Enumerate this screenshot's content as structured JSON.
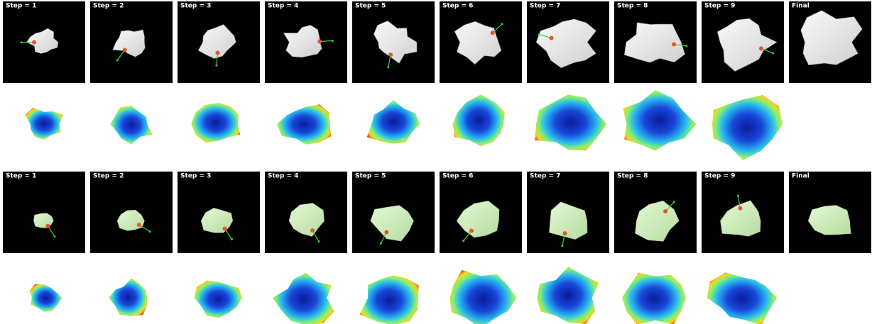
{
  "rows": [
    {
      "panels": [
        "Step = 1",
        "Step = 2",
        "Step = 3",
        "Step = 4",
        "Step = 5",
        "Step = 6",
        "Step = 7",
        "Step = 8",
        "Step = 9",
        "Final"
      ]
    },
    {
      "panels": [
        "Step = 1",
        "Step = 2",
        "Step = 3",
        "Step = 4",
        "Step = 5",
        "Step = 6",
        "Step = 7",
        "Step = 8",
        "Step = 9",
        "Final"
      ]
    }
  ]
}
